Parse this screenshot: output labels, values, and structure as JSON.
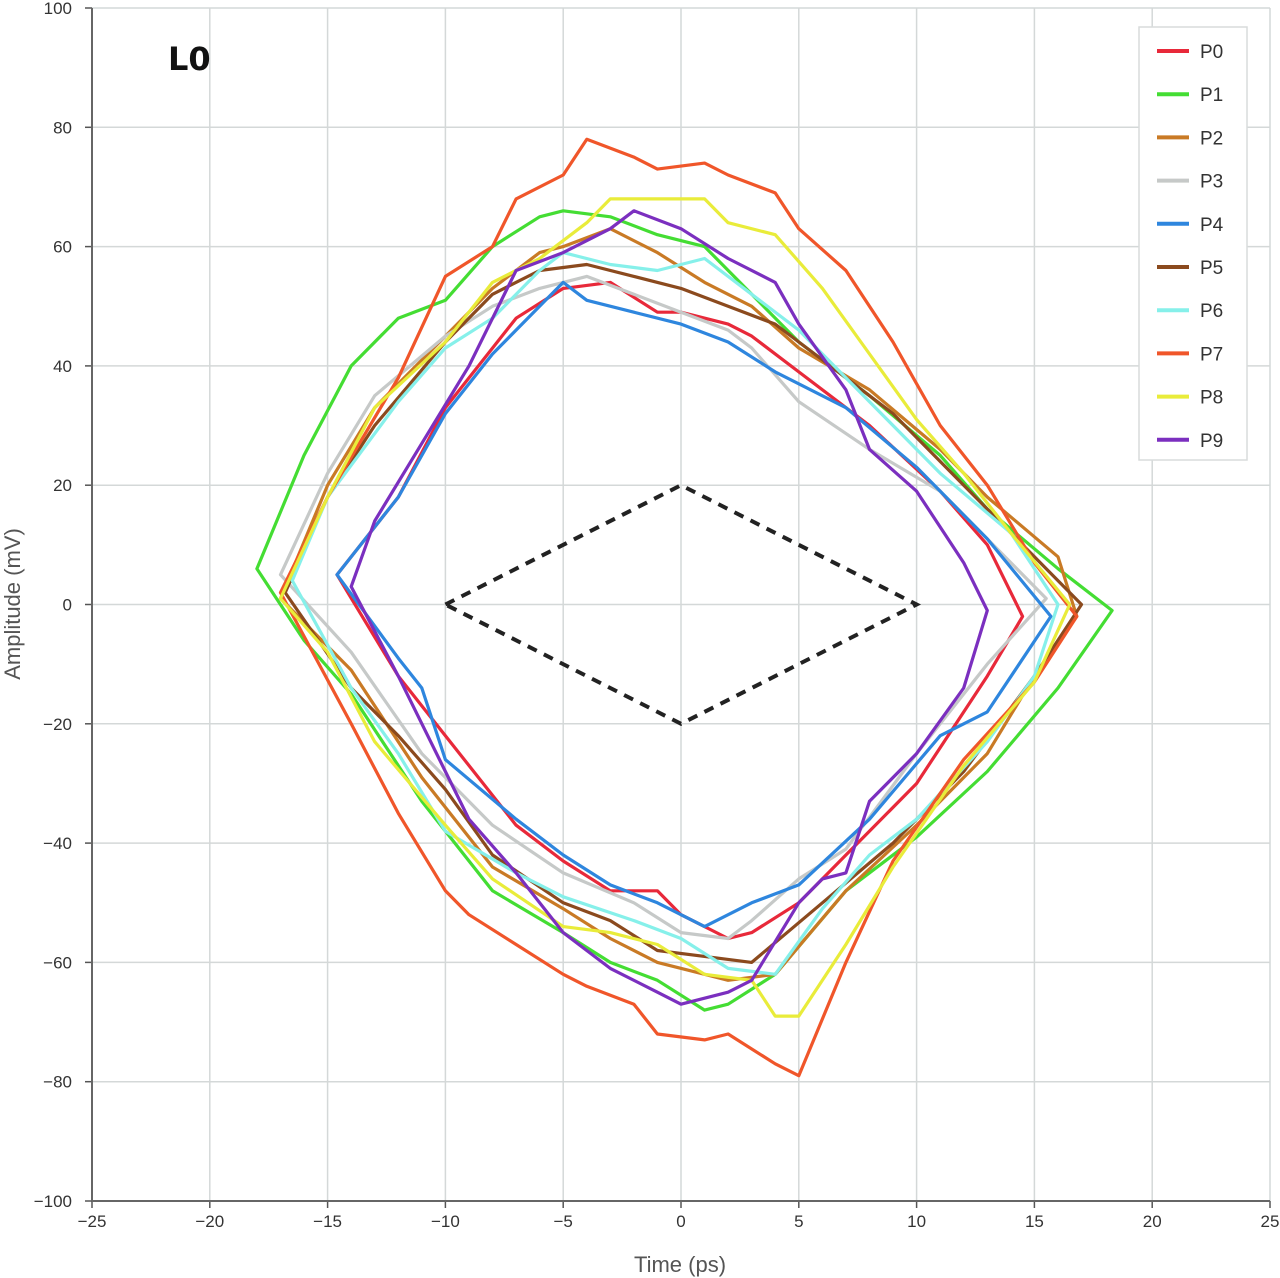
{
  "chart_data": {
    "type": "line",
    "title": "L0",
    "xlabel": "Time (ps)",
    "ylabel": "Amplitude (mV)",
    "xlim": [
      -25,
      25
    ],
    "ylim": [
      -100,
      100
    ],
    "xticks": [
      -25,
      -20,
      -15,
      -10,
      -5,
      0,
      5,
      10,
      15,
      20,
      25
    ],
    "yticks": [
      -100,
      -80,
      -60,
      -40,
      -20,
      0,
      20,
      40,
      60,
      80,
      100
    ],
    "grid": true,
    "legend_position": "top-right",
    "mask": {
      "style": "dashed",
      "color": "#222222",
      "points": [
        [
          -10,
          0
        ],
        [
          0,
          20
        ],
        [
          10,
          0
        ],
        [
          0,
          -20
        ],
        [
          -10,
          0
        ]
      ]
    },
    "series": [
      {
        "name": "P0",
        "color": "#e8293a",
        "points": [
          [
            -14.6,
            5
          ],
          [
            -12,
            18
          ],
          [
            -10,
            33
          ],
          [
            -7,
            48
          ],
          [
            -5,
            53
          ],
          [
            -3,
            54
          ],
          [
            -1,
            49
          ],
          [
            0,
            49
          ],
          [
            2,
            47
          ],
          [
            3,
            45
          ],
          [
            5,
            39
          ],
          [
            8,
            30
          ],
          [
            11,
            19
          ],
          [
            13,
            10
          ],
          [
            14.5,
            -2
          ],
          [
            13,
            -12
          ],
          [
            10,
            -30
          ],
          [
            7,
            -42
          ],
          [
            5,
            -50
          ],
          [
            3,
            -55
          ],
          [
            2,
            -56
          ],
          [
            0,
            -52
          ],
          [
            -1,
            -48
          ],
          [
            -3,
            -48
          ],
          [
            -5,
            -43
          ],
          [
            -7,
            -37
          ],
          [
            -10,
            -22
          ],
          [
            -12,
            -12
          ],
          [
            -14.6,
            5
          ]
        ]
      },
      {
        "name": "P1",
        "color": "#44dd33",
        "points": [
          [
            -18,
            6
          ],
          [
            -16,
            25
          ],
          [
            -14,
            40
          ],
          [
            -12,
            48
          ],
          [
            -10,
            51
          ],
          [
            -8,
            60
          ],
          [
            -6,
            65
          ],
          [
            -5,
            66
          ],
          [
            -3,
            65
          ],
          [
            -1,
            62
          ],
          [
            1,
            60
          ],
          [
            3,
            52
          ],
          [
            5,
            44
          ],
          [
            8,
            35
          ],
          [
            11,
            25
          ],
          [
            13,
            16
          ],
          [
            16,
            6
          ],
          [
            18.3,
            -1
          ],
          [
            16,
            -14
          ],
          [
            13,
            -28
          ],
          [
            10,
            -39
          ],
          [
            7,
            -48
          ],
          [
            4,
            -62
          ],
          [
            2,
            -67
          ],
          [
            1,
            -68
          ],
          [
            -1,
            -63
          ],
          [
            -3,
            -60
          ],
          [
            -5,
            -55
          ],
          [
            -8,
            -48
          ],
          [
            -11,
            -33
          ],
          [
            -14,
            -15
          ],
          [
            -16,
            -6
          ],
          [
            -18,
            6
          ]
        ]
      },
      {
        "name": "P2",
        "color": "#c97a25",
        "points": [
          [
            -17,
            1
          ],
          [
            -15,
            20
          ],
          [
            -13,
            33
          ],
          [
            -10,
            45
          ],
          [
            -8,
            53
          ],
          [
            -6,
            59
          ],
          [
            -5,
            60
          ],
          [
            -3,
            63
          ],
          [
            -1,
            59
          ],
          [
            1,
            54
          ],
          [
            3,
            50
          ],
          [
            5,
            43
          ],
          [
            8,
            36
          ],
          [
            11,
            26
          ],
          [
            13,
            18
          ],
          [
            16,
            8
          ],
          [
            16.8,
            -2
          ],
          [
            15,
            -12
          ],
          [
            13,
            -25
          ],
          [
            10,
            -37
          ],
          [
            7,
            -48
          ],
          [
            4,
            -62
          ],
          [
            2,
            -63
          ],
          [
            1,
            -62
          ],
          [
            -1,
            -60
          ],
          [
            -3,
            -56
          ],
          [
            -5,
            -51
          ],
          [
            -8,
            -44
          ],
          [
            -11,
            -29
          ],
          [
            -14,
            -11
          ],
          [
            -17,
            1
          ]
        ]
      },
      {
        "name": "P3",
        "color": "#c6c9c8",
        "points": [
          [
            -17,
            5
          ],
          [
            -15,
            22
          ],
          [
            -13,
            35
          ],
          [
            -10,
            45
          ],
          [
            -8,
            50
          ],
          [
            -6,
            53
          ],
          [
            -4,
            55
          ],
          [
            -2,
            52
          ],
          [
            0,
            49
          ],
          [
            2,
            46
          ],
          [
            3,
            43
          ],
          [
            5,
            34
          ],
          [
            8,
            26
          ],
          [
            11,
            19
          ],
          [
            13,
            11
          ],
          [
            15.5,
            1
          ],
          [
            13,
            -10
          ],
          [
            10,
            -25
          ],
          [
            7,
            -41
          ],
          [
            5,
            -46
          ],
          [
            3,
            -53
          ],
          [
            2,
            -56
          ],
          [
            0,
            -55
          ],
          [
            -2,
            -50
          ],
          [
            -5,
            -45
          ],
          [
            -8,
            -37
          ],
          [
            -11,
            -25
          ],
          [
            -14,
            -8
          ],
          [
            -17,
            5
          ]
        ]
      },
      {
        "name": "P4",
        "color": "#2e86de",
        "points": [
          [
            -14.6,
            5
          ],
          [
            -12,
            18
          ],
          [
            -10,
            32
          ],
          [
            -8,
            42
          ],
          [
            -6,
            50
          ],
          [
            -5,
            54
          ],
          [
            -4,
            51
          ],
          [
            -2,
            49
          ],
          [
            0,
            47
          ],
          [
            2,
            44
          ],
          [
            4,
            39
          ],
          [
            7,
            33
          ],
          [
            10,
            23
          ],
          [
            13,
            11
          ],
          [
            15.7,
            -2
          ],
          [
            13,
            -18
          ],
          [
            11,
            -22
          ],
          [
            8,
            -36
          ],
          [
            5,
            -47
          ],
          [
            3,
            -50
          ],
          [
            1,
            -54
          ],
          [
            -1,
            -50
          ],
          [
            -3,
            -47
          ],
          [
            -5,
            -42
          ],
          [
            -7,
            -36
          ],
          [
            -10,
            -26
          ],
          [
            -11,
            -14
          ],
          [
            -12,
            -9
          ],
          [
            -14.6,
            5
          ]
        ]
      },
      {
        "name": "P5",
        "color": "#8b4a1e",
        "points": [
          [
            -16.8,
            2
          ],
          [
            -15,
            18
          ],
          [
            -13,
            30
          ],
          [
            -10,
            44
          ],
          [
            -8,
            52
          ],
          [
            -6,
            56
          ],
          [
            -4,
            57
          ],
          [
            -2,
            55
          ],
          [
            0,
            53
          ],
          [
            2,
            50
          ],
          [
            4,
            47
          ],
          [
            6,
            41
          ],
          [
            9,
            32
          ],
          [
            12,
            20
          ],
          [
            15,
            8
          ],
          [
            17,
            0
          ],
          [
            15,
            -12
          ],
          [
            12,
            -28
          ],
          [
            9,
            -40
          ],
          [
            6,
            -50
          ],
          [
            3,
            -60
          ],
          [
            1,
            -59
          ],
          [
            -1,
            -58
          ],
          [
            -3,
            -53
          ],
          [
            -5,
            -50
          ],
          [
            -8,
            -42
          ],
          [
            -10,
            -31
          ],
          [
            -12,
            -22
          ],
          [
            -14,
            -14
          ],
          [
            -16.8,
            2
          ]
        ]
      },
      {
        "name": "P6",
        "color": "#86f0ea",
        "points": [
          [
            -16.5,
            4
          ],
          [
            -15,
            18
          ],
          [
            -12,
            34
          ],
          [
            -10,
            43
          ],
          [
            -8,
            48
          ],
          [
            -6,
            56
          ],
          [
            -5,
            59
          ],
          [
            -3,
            57
          ],
          [
            -1,
            56
          ],
          [
            1,
            58
          ],
          [
            3,
            52
          ],
          [
            5,
            46
          ],
          [
            8,
            34
          ],
          [
            11,
            22
          ],
          [
            14,
            12
          ],
          [
            16,
            0
          ],
          [
            15,
            -12
          ],
          [
            13,
            -23
          ],
          [
            10,
            -36
          ],
          [
            8,
            -42
          ],
          [
            6,
            -51
          ],
          [
            4,
            -62
          ],
          [
            2,
            -61
          ],
          [
            0,
            -56
          ],
          [
            -2,
            -53
          ],
          [
            -5,
            -49
          ],
          [
            -7,
            -45
          ],
          [
            -10,
            -38
          ],
          [
            -12,
            -25
          ],
          [
            -14,
            -14
          ],
          [
            -16.5,
            4
          ]
        ]
      },
      {
        "name": "P7",
        "color": "#f0562a",
        "points": [
          [
            -17,
            2
          ],
          [
            -15,
            18
          ],
          [
            -12,
            38
          ],
          [
            -10,
            55
          ],
          [
            -8,
            60
          ],
          [
            -7,
            68
          ],
          [
            -5,
            72
          ],
          [
            -4,
            78
          ],
          [
            -2,
            75
          ],
          [
            -1,
            73
          ],
          [
            1,
            74
          ],
          [
            2,
            72
          ],
          [
            4,
            69
          ],
          [
            5,
            63
          ],
          [
            7,
            56
          ],
          [
            9,
            44
          ],
          [
            11,
            30
          ],
          [
            13,
            20
          ],
          [
            15,
            7
          ],
          [
            16.8,
            -2
          ],
          [
            15,
            -13
          ],
          [
            12,
            -26
          ],
          [
            9,
            -43
          ],
          [
            7,
            -60
          ],
          [
            5,
            -79
          ],
          [
            4,
            -77
          ],
          [
            2,
            -72
          ],
          [
            1,
            -73
          ],
          [
            -1,
            -72
          ],
          [
            -2,
            -67
          ],
          [
            -4,
            -64
          ],
          [
            -5,
            -62
          ],
          [
            -7,
            -57
          ],
          [
            -9,
            -52
          ],
          [
            -10,
            -48
          ],
          [
            -12,
            -35
          ],
          [
            -14,
            -20
          ],
          [
            -17,
            2
          ]
        ]
      },
      {
        "name": "P8",
        "color": "#e9ec3a",
        "points": [
          [
            -17,
            1
          ],
          [
            -15,
            18
          ],
          [
            -13,
            33
          ],
          [
            -10,
            44
          ],
          [
            -8,
            54
          ],
          [
            -6,
            58
          ],
          [
            -4,
            64
          ],
          [
            -3,
            68
          ],
          [
            -1,
            68
          ],
          [
            1,
            68
          ],
          [
            2,
            64
          ],
          [
            4,
            62
          ],
          [
            6,
            53
          ],
          [
            8,
            42
          ],
          [
            10,
            31
          ],
          [
            12,
            22
          ],
          [
            14,
            12
          ],
          [
            16.5,
            0
          ],
          [
            15,
            -13
          ],
          [
            12,
            -27
          ],
          [
            9,
            -44
          ],
          [
            7,
            -57
          ],
          [
            5,
            -69
          ],
          [
            4,
            -69
          ],
          [
            3,
            -63
          ],
          [
            1,
            -62
          ],
          [
            -1,
            -57
          ],
          [
            -3,
            -55
          ],
          [
            -5,
            -54
          ],
          [
            -8,
            -46
          ],
          [
            -10,
            -37
          ],
          [
            -13,
            -23
          ],
          [
            -15,
            -8
          ],
          [
            -17,
            1
          ]
        ]
      },
      {
        "name": "P9",
        "color": "#7b2fbf",
        "points": [
          [
            -14,
            3
          ],
          [
            -13,
            14
          ],
          [
            -11,
            27
          ],
          [
            -9,
            40
          ],
          [
            -7,
            56
          ],
          [
            -5,
            59
          ],
          [
            -3,
            63
          ],
          [
            -2,
            66
          ],
          [
            0,
            63
          ],
          [
            2,
            58
          ],
          [
            4,
            54
          ],
          [
            5,
            47
          ],
          [
            7,
            36
          ],
          [
            8,
            26
          ],
          [
            10,
            19
          ],
          [
            12,
            7
          ],
          [
            13,
            -1
          ],
          [
            12,
            -14
          ],
          [
            10,
            -25
          ],
          [
            8,
            -33
          ],
          [
            7,
            -45
          ],
          [
            6,
            -46
          ],
          [
            5,
            -50
          ],
          [
            3,
            -63
          ],
          [
            2,
            -65
          ],
          [
            0,
            -67
          ],
          [
            -1,
            -65
          ],
          [
            -3,
            -61
          ],
          [
            -5,
            -55
          ],
          [
            -7,
            -45
          ],
          [
            -9,
            -36
          ],
          [
            -10,
            -28
          ],
          [
            -12,
            -12
          ],
          [
            -14,
            3
          ]
        ]
      }
    ]
  }
}
